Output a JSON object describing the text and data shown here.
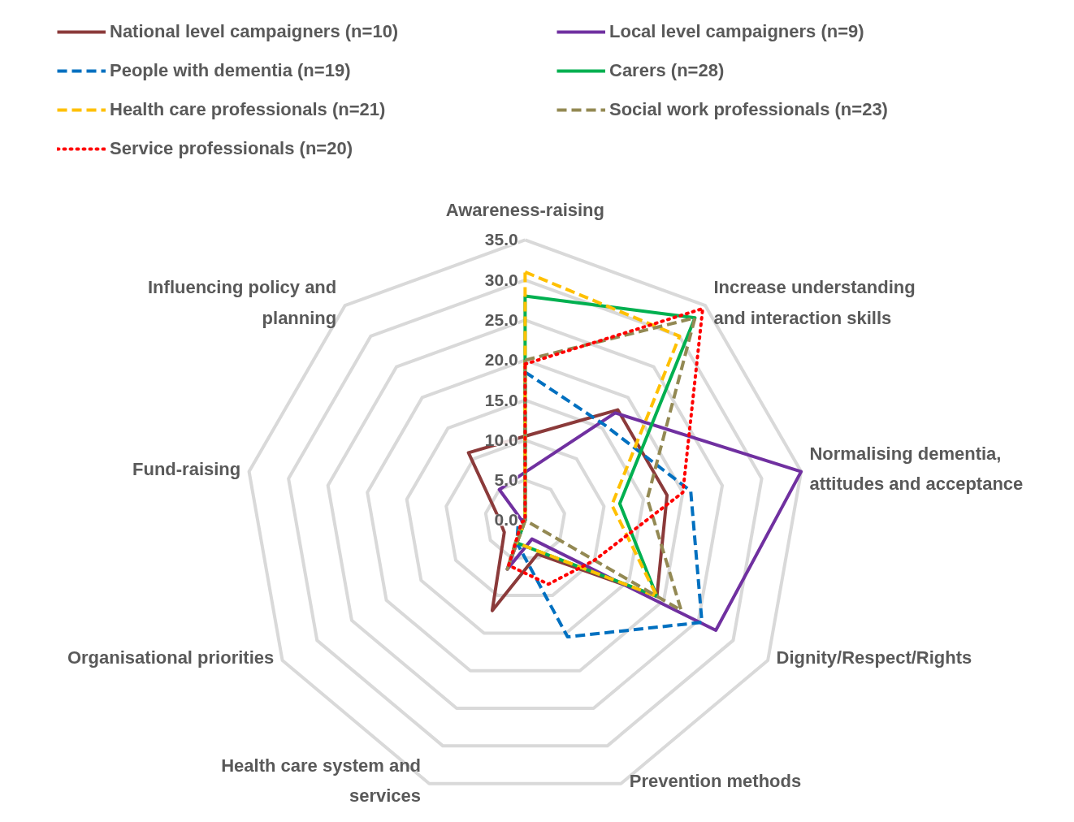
{
  "chart_data": {
    "type": "radar",
    "categories": [
      "Awareness-raising",
      "Increase understanding and interaction skills",
      "Normalising dementia, attitudes and acceptance",
      "Dignity/Respect/Rights",
      "Prevention methods",
      "Health care system and services",
      "Organisational priorities",
      "Fund-raising",
      "Influencing policy and planning"
    ],
    "series": [
      {
        "name": "National level campaigners (n=10)",
        "color": "#8b3a3a",
        "line_style": "solid",
        "values": [
          10.5,
          18,
          18,
          19,
          4.5,
          12,
          3,
          3.5,
          11
        ]
      },
      {
        "name": "Local level campaigners (n=9)",
        "color": "#7030a0",
        "line_style": "solid",
        "values": [
          6,
          17.5,
          35,
          27.5,
          2.5,
          6.5,
          0,
          0.5,
          5
        ]
      },
      {
        "name": "People with dementia (n=19)",
        "color": "#0070c0",
        "line_style": "dashed",
        "values": [
          18.5,
          15.5,
          21,
          25.5,
          15.5,
          3,
          1,
          0,
          0
        ]
      },
      {
        "name": "Carers (n=28)",
        "color": "#00b050",
        "line_style": "solid",
        "values": [
          28,
          33,
          12,
          19,
          4,
          3,
          0,
          0,
          0
        ]
      },
      {
        "name": "Health care professionals (n=21)",
        "color": "#ffc000",
        "line_style": "dashed",
        "values": [
          31,
          30,
          11,
          19,
          4,
          3,
          0,
          0,
          0
        ]
      },
      {
        "name": "Social work professionals (n=23)",
        "color": "#938953",
        "line_style": "dashed",
        "values": [
          20,
          33,
          15.5,
          22.5,
          0,
          6.5,
          0.5,
          0,
          0
        ]
      },
      {
        "name": "Service professionals (n=20)",
        "color": "#ff0000",
        "line_style": "dotted",
        "values": [
          19.5,
          34.5,
          20,
          10,
          8.5,
          6,
          0.5,
          0,
          0
        ]
      }
    ],
    "ylim": [
      0,
      35
    ],
    "yticks": [
      {
        "value": 0,
        "label": "0.0"
      },
      {
        "value": 5,
        "label": "5.0"
      },
      {
        "value": 10,
        "label": "10.0"
      },
      {
        "value": 15,
        "label": "15.0"
      },
      {
        "value": 20,
        "label": "20.0"
      },
      {
        "value": 25,
        "label": "25.0"
      },
      {
        "value": 30,
        "label": "30.0"
      },
      {
        "value": 35,
        "label": "35.0"
      }
    ],
    "grid": true,
    "legend": "top"
  }
}
